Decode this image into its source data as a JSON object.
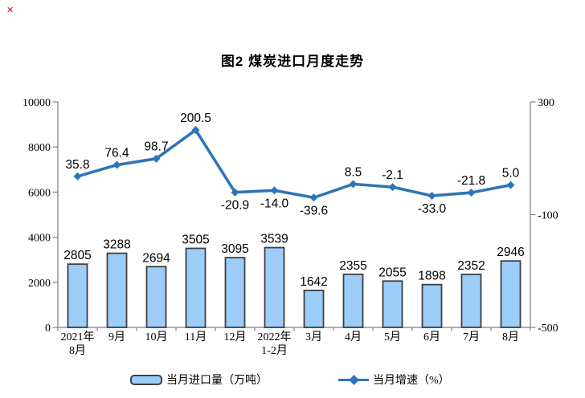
{
  "broken_image_mark": "✕",
  "title": "图2 煤炭进口月度走势",
  "legend": [
    {
      "label": "当月进口量（万吨）",
      "swatch": "bar"
    },
    {
      "label": "当月增速（%）",
      "swatch": "line"
    }
  ],
  "colors": {
    "bar_fill": "#9DCDF9",
    "bar_border": "#3F3F3F",
    "line": "#2E75B6",
    "axis": "#808080",
    "text": "#000000",
    "mark": "#CC0000"
  },
  "chart_data": {
    "type": "bar+line combo",
    "title": "图2 煤炭进口月度走势",
    "categories": [
      "2021年\n8月",
      "9月",
      "10月",
      "11月",
      "12月",
      "2022年\n1-2月",
      "3月",
      "4月",
      "5月",
      "6月",
      "7月",
      "8月"
    ],
    "series": [
      {
        "name": "当月进口量（万吨）",
        "type": "bar",
        "axis": "left",
        "values": [
          2805,
          3288,
          2694,
          3505,
          3095,
          3539,
          1642,
          2355,
          2055,
          1898,
          2352,
          2946
        ]
      },
      {
        "name": "当月增速（%）",
        "type": "line",
        "axis": "right",
        "values": [
          35.8,
          76.4,
          98.7,
          200.5,
          -20.9,
          -14.0,
          -39.6,
          8.5,
          -2.1,
          -33.0,
          -21.8,
          5.0
        ],
        "labels": [
          "35.8",
          "76.4",
          "98.7",
          "200.5",
          "-20.9",
          "-14.0",
          "-39.6",
          "8.5",
          "-2.1",
          "-33.0",
          "-21.8",
          "5.0"
        ],
        "label_side": [
          "above",
          "above",
          "above",
          "above",
          "below",
          "below",
          "below",
          "above",
          "above",
          "below",
          "above",
          "above"
        ]
      }
    ],
    "left_axis": {
      "min": 0,
      "max": 10000,
      "ticks": [
        0,
        2000,
        4000,
        6000,
        8000,
        10000
      ]
    },
    "right_axis": {
      "min": -500,
      "max": 300,
      "ticks": [
        -500,
        -100,
        300
      ]
    },
    "grid": false,
    "legend_position": "bottom"
  }
}
